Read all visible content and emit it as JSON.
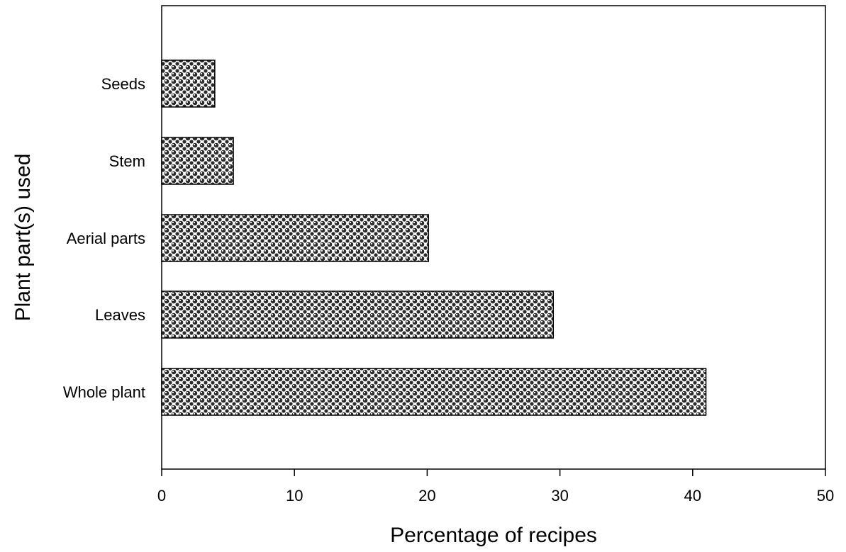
{
  "chart_data": {
    "type": "bar",
    "orientation": "horizontal",
    "categories": [
      "Whole plant",
      "Leaves",
      "Aerial parts",
      "Stem",
      "Seeds"
    ],
    "values": [
      41.0,
      29.5,
      20.1,
      5.4,
      4.0
    ],
    "xlabel": "Percentage of recipes",
    "ylabel": "Plant part(s) used",
    "xlim": [
      0,
      50
    ],
    "xticks": [
      0,
      10,
      20,
      30,
      40,
      50
    ],
    "grid": false,
    "legend": "none",
    "bar_fill": "crosshatch-pattern",
    "colors": {
      "bar_stroke": "#000000",
      "pattern_dark": "#2b2b2b",
      "pattern_light": "#ffffff"
    }
  }
}
